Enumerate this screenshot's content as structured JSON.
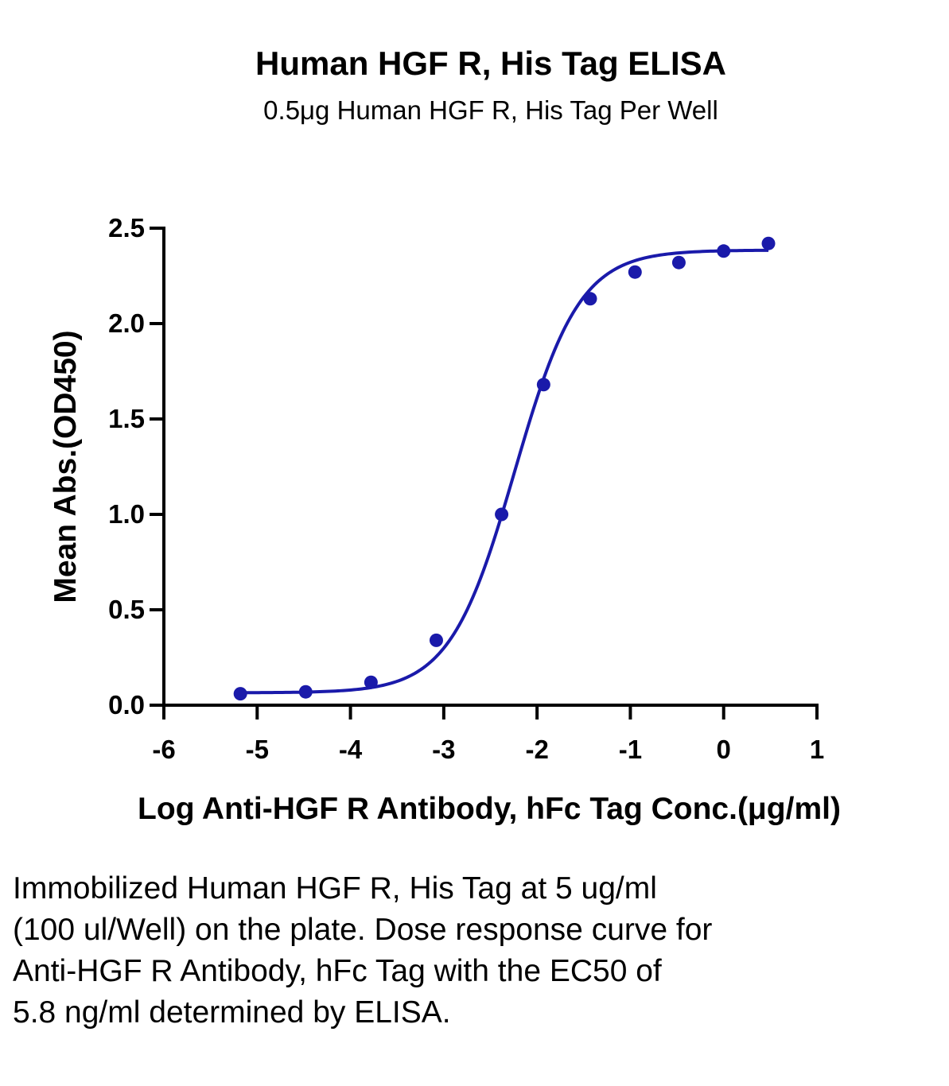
{
  "chart_data": {
    "type": "scatter",
    "title": "Human HGF R, His Tag ELISA",
    "subtitle": "0.5μg Human HGF R, His Tag Per Well",
    "xlabel": "Log Anti-HGF R Antibody, hFc Tag Conc.(μg/ml)",
    "ylabel": "Mean Abs.(OD450)",
    "xlim": [
      -6,
      1
    ],
    "ylim": [
      0,
      2.5
    ],
    "xticks": [
      "-6",
      "-5",
      "-4",
      "-3",
      "-2",
      "-1",
      "0",
      "1"
    ],
    "yticks": [
      "0.0",
      "0.5",
      "1.0",
      "1.5",
      "2.0",
      "2.5"
    ],
    "grid": false,
    "legend": "none",
    "color": "#1a1aaa",
    "series": [
      {
        "x": [
          -5.18,
          -4.48,
          -3.78,
          -3.08,
          -2.38,
          -1.93,
          -1.43,
          -0.95,
          -0.48,
          0.0,
          0.48
        ],
        "y": [
          0.06,
          0.07,
          0.12,
          0.34,
          1.0,
          1.68,
          2.13,
          2.27,
          2.32,
          2.38,
          2.42
        ]
      }
    ],
    "fit": {
      "model": "4PL",
      "bottom": 0.065,
      "top": 2.385,
      "logEC50": -2.24,
      "hill": 1.25
    }
  },
  "caption": "Immobilized Human HGF R, His Tag at 5 ug/ml (100 ul/Well) on the plate. Dose response curve for Anti-HGF R Antibody, hFc Tag with the EC50 of 5.8 ng/ml determined by ELISA."
}
